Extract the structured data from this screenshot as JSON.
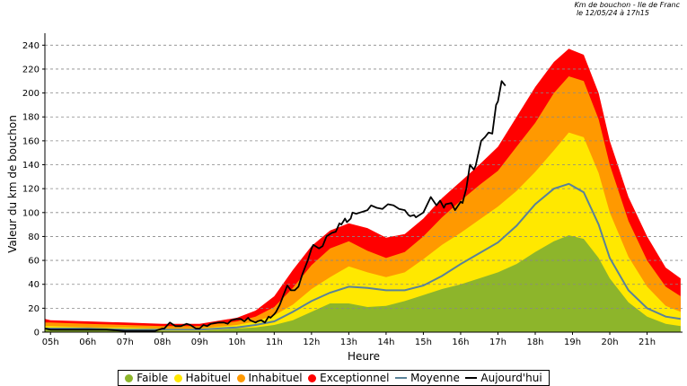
{
  "header": {
    "line1": "Km de bouchon - Ile de Franc",
    "line2": "le 12/05/24 à 17h15"
  },
  "chart_data": {
    "type": "area",
    "xlabel": "Heure",
    "ylabel": "Valeur du  km de bouchon",
    "xlim": [
      4.85,
      21.95
    ],
    "ylim": [
      0,
      250
    ],
    "x_ticks": [
      "05h",
      "06h",
      "07h",
      "08h",
      "09h",
      "10h",
      "11h",
      "12h",
      "13h",
      "14h",
      "15h",
      "16h",
      "17h",
      "18h",
      "19h",
      "20h",
      "21h"
    ],
    "y_ticks": [
      0,
      20,
      40,
      60,
      80,
      100,
      120,
      140,
      160,
      180,
      200,
      220,
      240
    ],
    "grid": true,
    "legend_position": "bottom",
    "x": [
      4.85,
      5,
      6,
      7,
      8,
      9,
      10,
      10.5,
      11,
      11.5,
      12,
      12.5,
      13,
      13.5,
      14,
      14.5,
      15,
      15.5,
      16,
      16.5,
      17,
      17.5,
      18,
      18.5,
      18.9,
      19.3,
      19.7,
      20,
      20.5,
      21,
      21.5,
      21.9
    ],
    "series": [
      {
        "name": "Faible",
        "color": "#8db52b",
        "values": [
          2,
          2,
          2,
          1,
          1,
          1,
          3,
          4,
          6,
          10,
          17,
          24,
          24,
          21,
          22,
          26,
          31,
          36,
          40,
          45,
          50,
          57,
          67,
          76,
          81,
          78,
          62,
          45,
          25,
          13,
          7,
          5
        ]
      },
      {
        "name": "Habituel",
        "color": "#ffe800",
        "values": [
          5,
          5,
          4,
          4,
          3,
          3,
          6,
          9,
          14,
          23,
          36,
          46,
          55,
          50,
          46,
          50,
          61,
          73,
          83,
          94,
          105,
          118,
          134,
          152,
          167,
          163,
          133,
          100,
          63,
          38,
          22,
          17
        ]
      },
      {
        "name": "Inhabituel",
        "color": "#ff9900",
        "values": [
          8,
          8,
          7,
          6,
          5,
          5,
          9,
          13,
          21,
          37,
          56,
          70,
          76,
          68,
          62,
          67,
          80,
          96,
          110,
          123,
          135,
          155,
          175,
          200,
          214,
          210,
          178,
          140,
          93,
          60,
          38,
          30
        ]
      },
      {
        "name": "Exceptionnel",
        "color": "#ff0000",
        "values": [
          11,
          10,
          9,
          8,
          7,
          7,
          12,
          18,
          30,
          52,
          72,
          85,
          91,
          87,
          79,
          82,
          95,
          112,
          126,
          140,
          155,
          180,
          205,
          226,
          237,
          232,
          200,
          160,
          113,
          80,
          54,
          45
        ]
      },
      {
        "name": "Moyenne",
        "color": "#5a8299",
        "values": [
          3,
          3,
          3,
          2,
          2,
          2,
          4,
          6,
          9,
          17,
          26,
          33,
          38,
          37,
          35,
          35,
          39,
          47,
          57,
          66,
          75,
          89,
          107,
          120,
          124,
          117,
          90,
          62,
          35,
          20,
          13,
          11
        ]
      }
    ],
    "today": {
      "name": "Aujourd'hui",
      "color": "#000000",
      "x": [
        4.85,
        5,
        5.5,
        6,
        6.5,
        7,
        7.5,
        7.8,
        8,
        8.05,
        8.2,
        8.35,
        8.5,
        8.65,
        8.75,
        8.9,
        9,
        9.1,
        9.2,
        9.3,
        9.5,
        9.65,
        9.75,
        9.85,
        10,
        10.1,
        10.2,
        10.3,
        10.35,
        10.5,
        10.55,
        10.65,
        10.75,
        10.85,
        10.9,
        11,
        11.05,
        11.15,
        11.25,
        11.35,
        11.45,
        11.55,
        11.65,
        11.75,
        11.8,
        11.9,
        12,
        12.05,
        12.2,
        12.3,
        12.4,
        12.55,
        12.65,
        12.75,
        12.8,
        12.9,
        12.95,
        13.05,
        13.1,
        13.2,
        13.3,
        13.5,
        13.6,
        13.75,
        13.9,
        14.05,
        14.2,
        14.35,
        14.5,
        14.6,
        14.65,
        14.75,
        14.8,
        15,
        15.2,
        15.35,
        15.45,
        15.55,
        15.6,
        15.75,
        15.85,
        16,
        16.05,
        16.15,
        16.25,
        16.35,
        16.4,
        16.55,
        16.65,
        16.75,
        16.85,
        16.95,
        17,
        17.1,
        17.2
      ],
      "values": [
        3,
        2,
        2,
        2,
        2,
        1,
        1,
        1,
        3,
        3,
        8,
        5,
        5,
        7,
        6,
        3,
        3,
        6,
        5,
        7,
        8,
        8,
        7,
        10,
        11,
        11,
        9,
        12,
        10,
        8,
        9,
        10,
        8,
        13,
        12,
        15,
        17,
        23,
        31,
        39,
        35,
        35,
        38,
        48,
        52,
        60,
        70,
        73,
        70,
        72,
        80,
        83,
        84,
        91,
        90,
        95,
        92,
        95,
        100,
        99,
        100,
        102,
        106,
        104,
        103,
        107,
        106,
        103,
        102,
        98,
        97,
        98,
        96,
        100,
        113,
        106,
        110,
        104,
        107,
        108,
        102,
        109,
        108,
        120,
        140,
        136,
        139,
        160,
        163,
        167,
        166,
        190,
        193,
        210,
        206
      ]
    }
  }
}
